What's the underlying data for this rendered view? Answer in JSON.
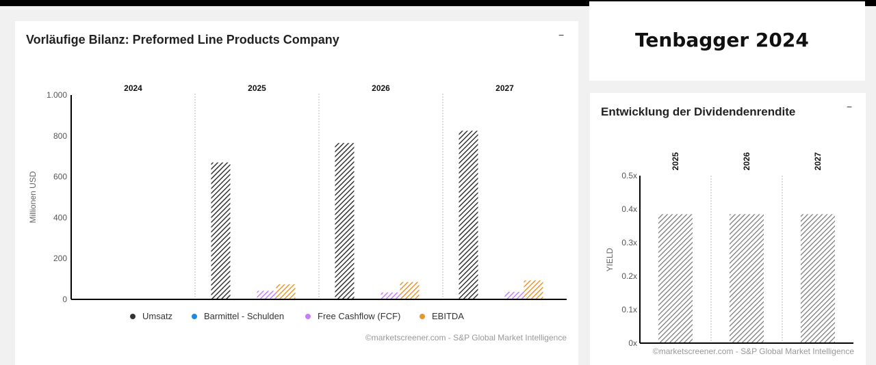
{
  "main_card": {
    "title": "Vorläufige Bilanz: Preformed Line Products Company",
    "minimize_label": "−"
  },
  "banner": {
    "text": "Tenbagger 2024"
  },
  "dividend_card": {
    "title": "Entwicklung der Dividendenrendite",
    "minimize_label": "−"
  },
  "chart_data": [
    {
      "type": "bar",
      "title": "Vorläufige Bilanz: Preformed Line Products Company",
      "categories": [
        "2024",
        "2025",
        "2026",
        "2027"
      ],
      "ylabel": "Millionen USD",
      "ylim": [
        0,
        1000
      ],
      "yticks": [
        0,
        200,
        400,
        600,
        800,
        1000
      ],
      "ytick_labels": [
        "0",
        "200",
        "400",
        "600",
        "800",
        "1.000"
      ],
      "series": [
        {
          "name": "Umsatz",
          "color": "#333333",
          "values": [
            null,
            670,
            765,
            825
          ]
        },
        {
          "name": "Barmittel - Schulden",
          "color": "#1e88e5",
          "values": [
            null,
            null,
            null,
            null
          ]
        },
        {
          "name": "Free Cashflow (FCF)",
          "color": "#c77dff",
          "values": [
            null,
            42,
            34,
            37
          ]
        },
        {
          "name": "EBITDA",
          "color": "#e8962e",
          "values": [
            null,
            74,
            85,
            93
          ]
        }
      ],
      "legend_position": "bottom",
      "source": "©marketscreener.com - S&P Global Market Intelligence"
    },
    {
      "type": "bar",
      "title": "Entwicklung der Dividendenrendite",
      "categories": [
        "2025",
        "2026",
        "2027"
      ],
      "ylabel": "YIELD",
      "ylim": [
        0,
        0.5
      ],
      "yticks": [
        0,
        0.1,
        0.2,
        0.3,
        0.4,
        0.5
      ],
      "ytick_labels": [
        "0x",
        "0.1x",
        "0.2x",
        "0.3x",
        "0.4x",
        "0.5x"
      ],
      "series": [
        {
          "name": "Dividendenrendite",
          "color": "#777777",
          "values": [
            0.385,
            0.385,
            0.385
          ]
        }
      ],
      "source": "©marketscreener.com - S&P Global Market Intelligence"
    }
  ]
}
